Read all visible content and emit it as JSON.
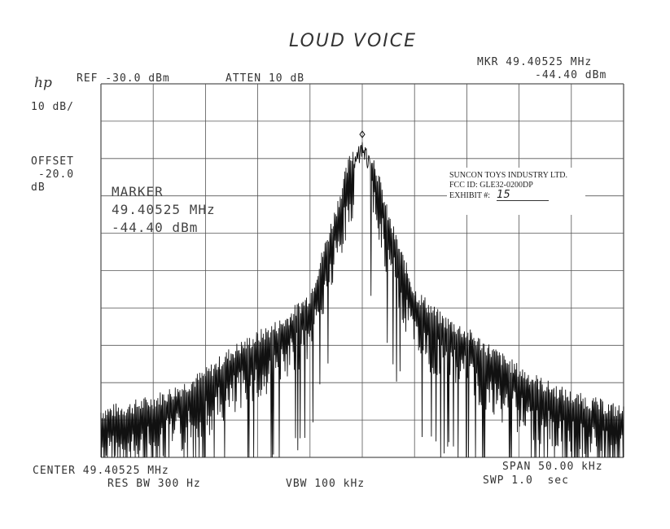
{
  "handwritten_title": "LOUD VOICE",
  "logo": "hp",
  "header": {
    "ref": "REF -30.0 dBm",
    "atten": "ATTEN 10 dB",
    "mkr_freq": "MKR 49.40525 MHz",
    "mkr_level": "-44.40 dBm"
  },
  "left_labels": {
    "scale": "10 dB/",
    "offset_label": "OFFSET",
    "offset_value": "-20.0",
    "offset_unit": "dB"
  },
  "marker_box": {
    "label": "MARKER",
    "freq": "49.40525 MHz",
    "level": "-44.40 dBm"
  },
  "stamp": {
    "company": "SUNCON TOYS INDUSTRY LTD.",
    "fcc_id": "FCC ID:  GLE32-0200DP",
    "exhibit_label": "EXHIBIT #:",
    "exhibit_number": "15"
  },
  "footer": {
    "center": "CENTER 49.40525 MHz",
    "span": "SPAN 50.00 kHz",
    "res_bw": "RES BW 300 Hz",
    "vbw": "VBW 100 kHz",
    "swp": "SWP 1.0  sec"
  },
  "chart_data": {
    "type": "line",
    "title": "LOUD VOICE",
    "xlabel": "",
    "ylabel": "",
    "x_unit": "MHz",
    "y_unit": "dBm",
    "xlim": [
      49.38025,
      49.43025
    ],
    "ylim": [
      -130,
      -30
    ],
    "grid": true,
    "divisions": {
      "x": 10,
      "y": 10
    },
    "series": [
      {
        "x": [
          49.38025,
          49.38275,
          49.38525,
          49.38775,
          49.39025,
          49.39275,
          49.39525,
          49.39775,
          49.40025,
          49.40275,
          49.404,
          49.40525,
          49.4065,
          49.40775,
          49.41025,
          49.41275,
          49.41525,
          49.41775,
          49.42025,
          49.42275,
          49.42525,
          49.42775,
          49.43025
        ],
        "y": [
          -120,
          -119,
          -117,
          -114,
          -110,
          -104,
          -100,
          -96,
          -89,
          -66,
          -53,
          -44.4,
          -54,
          -68,
          -88,
          -95,
          -99,
          -104,
          -109,
          -113,
          -116,
          -118,
          -120
        ]
      }
    ],
    "marker": {
      "x": 49.40525,
      "y": -44.4
    }
  }
}
